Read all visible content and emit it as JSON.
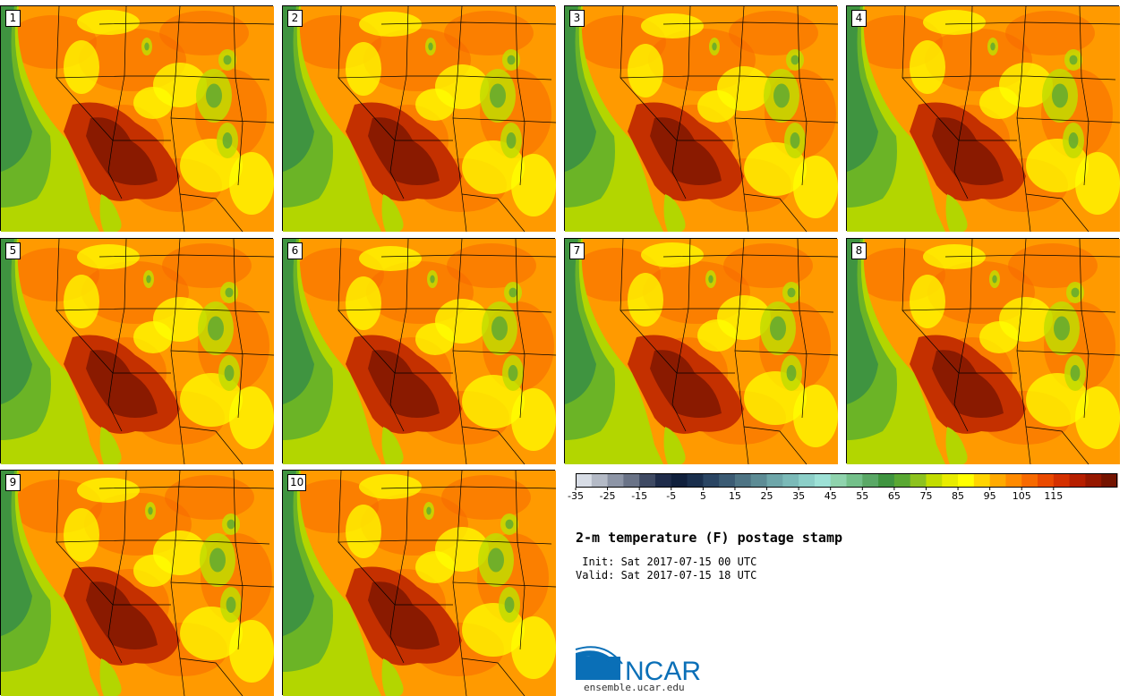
{
  "panels": [
    {
      "label": "1"
    },
    {
      "label": "2"
    },
    {
      "label": "3"
    },
    {
      "label": "4"
    },
    {
      "label": "5"
    },
    {
      "label": "6"
    },
    {
      "label": "7"
    },
    {
      "label": "8"
    },
    {
      "label": "9"
    },
    {
      "label": "10"
    }
  ],
  "colorbar": {
    "colors": [
      "#d8dde6",
      "#b4bac6",
      "#8d95a6",
      "#6a7387",
      "#3f4a63",
      "#1f2c4a",
      "#10203c",
      "#1a2f4d",
      "#2a4563",
      "#3b5b73",
      "#4e7484",
      "#5d8c95",
      "#6ea6a9",
      "#7bbab8",
      "#8ccfc8",
      "#9de1d6",
      "#8fd3ad",
      "#74c08a",
      "#5aa866",
      "#3f9440",
      "#5aa833",
      "#8dc21f",
      "#c2dc00",
      "#e8ec00",
      "#ffff00",
      "#ffd400",
      "#ffaa00",
      "#ff8a00",
      "#f76a00",
      "#ea4a00",
      "#d43000",
      "#b61f00",
      "#961800",
      "#741300"
    ],
    "tick_labels": [
      "-35",
      "-25",
      "-15",
      "-5",
      "5",
      "15",
      "25",
      "35",
      "45",
      "55",
      "65",
      "75",
      "85",
      "95",
      "105",
      "115"
    ]
  },
  "title": "2-m temperature (F) postage stamp",
  "init_line": " Init: Sat 2017-07-15 00 UTC",
  "valid_line": "Valid: Sat 2017-07-15 18 UTC",
  "logo": {
    "text": "NCAR",
    "url": "ensemble.ucar.edu"
  },
  "palette": {
    "ocean_dark": "#3f9440",
    "ocean_mid": "#6bb426",
    "ocean_light": "#b3d600",
    "land_base": "#ff9a00",
    "land_warm": "#f76a00",
    "hot": "#c43000",
    "hottest": "#8a1a00",
    "yellow": "#ffff00",
    "lime": "#c2dc00",
    "green": "#5aa833"
  }
}
